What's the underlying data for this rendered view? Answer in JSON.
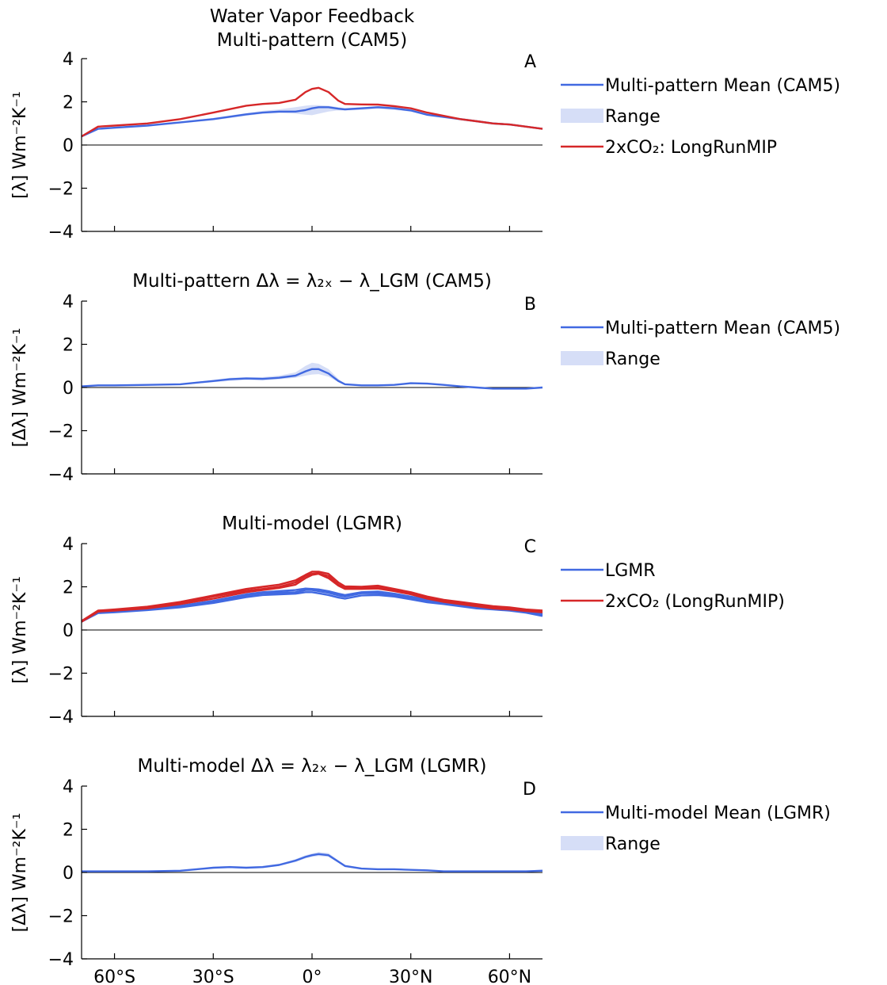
{
  "chart_data": [
    {
      "type": "line",
      "panel_label": "A",
      "title_lines": [
        "Water Vapor Feedback",
        "Multi-pattern (CAM5)"
      ],
      "ylabel": "[λ] Wm⁻²K⁻¹",
      "xlim": [
        -70,
        70
      ],
      "ylim": [
        -4,
        4
      ],
      "yticks": [
        -4,
        -2,
        0,
        2,
        4
      ],
      "yticklabels": [
        "−4",
        "−2",
        "0",
        "2",
        "4"
      ],
      "xticks": [
        -60,
        -30,
        0,
        30,
        60
      ],
      "xticklabels": [
        "60°S",
        "30°S",
        "0°",
        "30°N",
        "60°N"
      ],
      "show_xticklabels": false,
      "zero_line": true,
      "legend_position": "right",
      "x": [
        -70,
        -65,
        -60,
        -50,
        -40,
        -30,
        -20,
        -15,
        -10,
        -5,
        -2,
        0,
        2,
        5,
        8,
        10,
        15,
        20,
        25,
        30,
        35,
        40,
        45,
        50,
        55,
        60,
        65,
        70
      ],
      "series": [
        {
          "name": "Multi-pattern Mean (CAM5)",
          "kind": "line",
          "color": "#4169e1",
          "values": [
            0.4,
            0.75,
            0.8,
            0.9,
            1.05,
            1.2,
            1.42,
            1.5,
            1.55,
            1.55,
            1.62,
            1.7,
            1.75,
            1.75,
            1.68,
            1.65,
            1.7,
            1.75,
            1.7,
            1.6,
            1.4,
            1.3,
            1.2,
            1.1,
            1.0,
            0.95,
            0.85,
            0.75
          ]
        },
        {
          "name": "Range",
          "kind": "band",
          "color": "#d6def7",
          "lower": [
            0.4,
            0.72,
            0.78,
            0.88,
            1.0,
            1.15,
            1.35,
            1.45,
            1.48,
            1.45,
            1.4,
            1.38,
            1.45,
            1.55,
            1.6,
            1.6,
            1.62,
            1.68,
            1.62,
            1.55,
            1.35,
            1.25,
            1.15,
            1.05,
            0.95,
            0.9,
            0.82,
            0.72
          ],
          "upper": [
            0.42,
            0.78,
            0.83,
            0.93,
            1.08,
            1.25,
            1.48,
            1.58,
            1.65,
            1.75,
            1.82,
            1.85,
            1.85,
            1.82,
            1.75,
            1.7,
            1.75,
            1.8,
            1.76,
            1.65,
            1.45,
            1.35,
            1.25,
            1.15,
            1.05,
            0.98,
            0.88,
            0.78
          ]
        },
        {
          "name": "2xCO₂: LongRunMIP",
          "kind": "line",
          "color": "#d62728",
          "values": [
            0.4,
            0.85,
            0.9,
            1.0,
            1.2,
            1.5,
            1.82,
            1.9,
            1.95,
            2.1,
            2.45,
            2.6,
            2.65,
            2.45,
            2.05,
            1.9,
            1.88,
            1.87,
            1.8,
            1.7,
            1.5,
            1.35,
            1.2,
            1.1,
            1.0,
            0.95,
            0.85,
            0.75
          ]
        }
      ]
    },
    {
      "type": "line",
      "panel_label": "B",
      "title_lines": [
        "Multi-pattern Δλ = λ₂ₓ − λ_LGM (CAM5)"
      ],
      "ylabel": "[Δλ] Wm⁻²K⁻¹",
      "xlim": [
        -70,
        70
      ],
      "ylim": [
        -4,
        4
      ],
      "yticks": [
        -4,
        -2,
        0,
        2,
        4
      ],
      "yticklabels": [
        "−4",
        "−2",
        "0",
        "2",
        "4"
      ],
      "xticks": [
        -60,
        -30,
        0,
        30,
        60
      ],
      "xticklabels": [
        "60°S",
        "30°S",
        "0°",
        "30°N",
        "60°N"
      ],
      "show_xticklabels": false,
      "zero_line": true,
      "legend_position": "right",
      "x": [
        -70,
        -65,
        -60,
        -50,
        -40,
        -30,
        -25,
        -20,
        -15,
        -10,
        -5,
        -2,
        0,
        2,
        5,
        8,
        10,
        15,
        20,
        25,
        30,
        35,
        40,
        45,
        50,
        55,
        60,
        65,
        70
      ],
      "series": [
        {
          "name": "Multi-pattern Mean (CAM5)",
          "kind": "line",
          "color": "#4169e1",
          "values": [
            0.05,
            0.1,
            0.1,
            0.12,
            0.15,
            0.3,
            0.38,
            0.42,
            0.4,
            0.45,
            0.55,
            0.75,
            0.85,
            0.85,
            0.65,
            0.3,
            0.15,
            0.1,
            0.1,
            0.12,
            0.2,
            0.18,
            0.12,
            0.05,
            0.0,
            -0.05,
            -0.05,
            -0.05,
            0.0
          ]
        },
        {
          "name": "Range",
          "kind": "band",
          "color": "#d6def7",
          "lower": [
            0.03,
            0.08,
            0.08,
            0.1,
            0.12,
            0.25,
            0.3,
            0.35,
            0.32,
            0.38,
            0.45,
            0.55,
            0.6,
            0.62,
            0.5,
            0.25,
            0.12,
            0.08,
            0.08,
            0.1,
            0.17,
            0.15,
            0.1,
            0.03,
            -0.02,
            -0.07,
            -0.08,
            -0.08,
            -0.03
          ],
          "upper": [
            0.07,
            0.12,
            0.12,
            0.15,
            0.18,
            0.35,
            0.45,
            0.48,
            0.48,
            0.55,
            0.7,
            1.0,
            1.15,
            1.1,
            0.85,
            0.4,
            0.18,
            0.12,
            0.12,
            0.15,
            0.23,
            0.21,
            0.15,
            0.07,
            0.02,
            -0.02,
            -0.02,
            -0.02,
            0.03
          ]
        }
      ]
    },
    {
      "type": "line",
      "panel_label": "C",
      "title_lines": [
        "Multi-model (LGMR)"
      ],
      "ylabel": "[λ] Wm⁻²K⁻¹",
      "xlim": [
        -70,
        70
      ],
      "ylim": [
        -4,
        4
      ],
      "yticks": [
        -4,
        -2,
        0,
        2,
        4
      ],
      "yticklabels": [
        "−4",
        "−2",
        "0",
        "2",
        "4"
      ],
      "xticks": [
        -60,
        -30,
        0,
        30,
        60
      ],
      "xticklabels": [
        "60°S",
        "30°S",
        "0°",
        "30°N",
        "60°N"
      ],
      "show_xticklabels": false,
      "zero_line": true,
      "legend_position": "right",
      "x": [
        -70,
        -65,
        -60,
        -50,
        -40,
        -30,
        -20,
        -15,
        -10,
        -5,
        -2,
        0,
        2,
        5,
        8,
        10,
        15,
        20,
        25,
        30,
        35,
        40,
        45,
        50,
        55,
        60,
        65,
        70
      ],
      "series": [
        {
          "name": "LGMR",
          "kind": "line",
          "color": "#4169e1",
          "values": [
            0.4,
            0.8,
            0.85,
            0.95,
            1.1,
            1.3,
            1.6,
            1.7,
            1.72,
            1.75,
            1.85,
            1.85,
            1.8,
            1.72,
            1.6,
            1.55,
            1.7,
            1.7,
            1.6,
            1.5,
            1.35,
            1.25,
            1.15,
            1.05,
            1.0,
            0.95,
            0.85,
            0.7
          ]
        },
        {
          "name": "",
          "kind": "line",
          "color": "#4169e1",
          "values": [
            0.38,
            0.78,
            0.82,
            0.92,
            1.05,
            1.25,
            1.52,
            1.62,
            1.65,
            1.68,
            1.75,
            1.75,
            1.7,
            1.62,
            1.5,
            1.45,
            1.6,
            1.62,
            1.55,
            1.42,
            1.28,
            1.2,
            1.1,
            1.0,
            0.95,
            0.9,
            0.8,
            0.65
          ]
        },
        {
          "name": "",
          "kind": "line",
          "color": "#4169e1",
          "values": [
            0.42,
            0.82,
            0.88,
            0.98,
            1.12,
            1.35,
            1.65,
            1.75,
            1.8,
            1.85,
            1.92,
            1.9,
            1.88,
            1.8,
            1.68,
            1.62,
            1.75,
            1.78,
            1.68,
            1.55,
            1.4,
            1.3,
            1.2,
            1.1,
            1.05,
            1.0,
            0.9,
            0.75
          ]
        },
        {
          "name": "2xCO₂ (LongRunMIP)",
          "kind": "line",
          "color": "#d62728",
          "values": [
            0.4,
            0.88,
            0.92,
            1.05,
            1.25,
            1.55,
            1.82,
            1.9,
            2.0,
            2.2,
            2.5,
            2.6,
            2.62,
            2.5,
            2.1,
            1.95,
            1.95,
            2.0,
            1.85,
            1.7,
            1.5,
            1.35,
            1.25,
            1.15,
            1.05,
            1.0,
            0.92,
            0.85
          ]
        },
        {
          "name": "",
          "kind": "line",
          "color": "#d62728",
          "values": [
            0.38,
            0.85,
            0.9,
            1.0,
            1.2,
            1.45,
            1.75,
            1.85,
            1.95,
            2.1,
            2.4,
            2.55,
            2.6,
            2.4,
            2.05,
            1.9,
            1.9,
            1.92,
            1.8,
            1.65,
            1.45,
            1.3,
            1.2,
            1.1,
            1.0,
            0.95,
            0.88,
            0.82
          ]
        },
        {
          "name": "",
          "kind": "line",
          "color": "#d62728",
          "values": [
            0.42,
            0.9,
            0.95,
            1.08,
            1.3,
            1.6,
            1.9,
            2.0,
            2.1,
            2.3,
            2.55,
            2.7,
            2.7,
            2.6,
            2.2,
            2.02,
            2.0,
            2.05,
            1.9,
            1.75,
            1.55,
            1.4,
            1.3,
            1.2,
            1.1,
            1.05,
            0.95,
            0.9
          ]
        }
      ]
    },
    {
      "type": "line",
      "panel_label": "D",
      "title_lines": [
        "Multi-model Δλ = λ₂ₓ − λ_LGM (LGMR)"
      ],
      "ylabel": "[Δλ] Wm⁻²K⁻¹",
      "xlim": [
        -70,
        70
      ],
      "ylim": [
        -4,
        4
      ],
      "yticks": [
        -4,
        -2,
        0,
        2,
        4
      ],
      "yticklabels": [
        "−4",
        "−2",
        "0",
        "2",
        "4"
      ],
      "xticks": [
        -60,
        -30,
        0,
        30,
        60
      ],
      "xticklabels": [
        "60°S",
        "30°S",
        "0°",
        "30°N",
        "60°N"
      ],
      "show_xticklabels": true,
      "zero_line": true,
      "legend_position": "right",
      "x": [
        -70,
        -65,
        -60,
        -50,
        -40,
        -35,
        -30,
        -25,
        -20,
        -15,
        -10,
        -5,
        -2,
        0,
        2,
        5,
        8,
        10,
        15,
        20,
        25,
        30,
        35,
        40,
        45,
        50,
        55,
        60,
        65,
        70
      ],
      "series": [
        {
          "name": "Multi-model Mean (LGMR)",
          "kind": "line",
          "color": "#4169e1",
          "values": [
            0.05,
            0.05,
            0.05,
            0.05,
            0.08,
            0.15,
            0.22,
            0.25,
            0.22,
            0.25,
            0.35,
            0.55,
            0.72,
            0.8,
            0.85,
            0.8,
            0.5,
            0.3,
            0.18,
            0.15,
            0.15,
            0.12,
            0.1,
            0.05,
            0.05,
            0.05,
            0.05,
            0.05,
            0.05,
            0.08
          ]
        },
        {
          "name": "Range",
          "kind": "band",
          "color": "#d6def7",
          "lower": [
            0.02,
            0.03,
            0.03,
            0.03,
            0.05,
            0.12,
            0.18,
            0.2,
            0.18,
            0.2,
            0.3,
            0.48,
            0.65,
            0.72,
            0.76,
            0.72,
            0.45,
            0.25,
            0.15,
            0.12,
            0.12,
            0.09,
            0.07,
            0.02,
            0.02,
            0.02,
            0.02,
            0.02,
            0.02,
            0.04
          ],
          "upper": [
            0.08,
            0.08,
            0.08,
            0.08,
            0.11,
            0.18,
            0.26,
            0.3,
            0.27,
            0.3,
            0.4,
            0.62,
            0.8,
            0.88,
            0.95,
            0.9,
            0.56,
            0.35,
            0.22,
            0.18,
            0.18,
            0.15,
            0.13,
            0.08,
            0.08,
            0.08,
            0.08,
            0.08,
            0.08,
            0.14
          ]
        }
      ]
    }
  ]
}
